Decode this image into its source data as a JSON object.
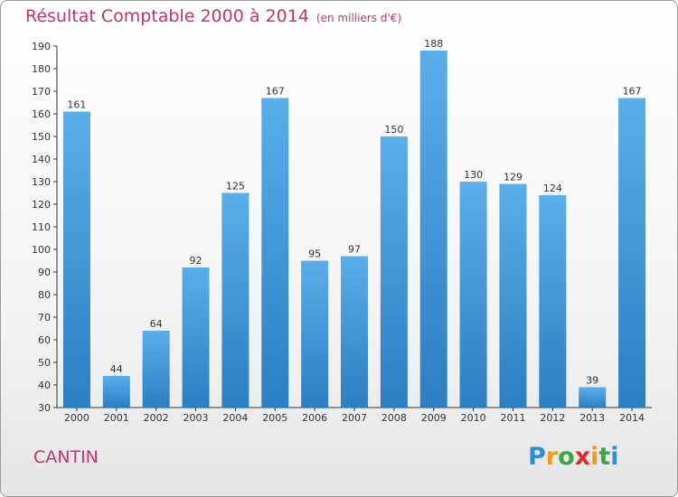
{
  "chart_data": {
    "type": "bar",
    "title": "Résultat Comptable 2000 à 2014",
    "subtitle": "(en milliers d'€)",
    "categories": [
      "2000",
      "2001",
      "2002",
      "2003",
      "2004",
      "2005",
      "2006",
      "2007",
      "2008",
      "2009",
      "2010",
      "2011",
      "2012",
      "2013",
      "2014"
    ],
    "values": [
      161,
      44,
      64,
      92,
      125,
      167,
      95,
      97,
      150,
      188,
      130,
      129,
      124,
      39,
      167
    ],
    "ylim": [
      30,
      190
    ],
    "yticks": [
      30,
      40,
      50,
      60,
      70,
      80,
      90,
      100,
      110,
      120,
      130,
      140,
      150,
      160,
      170,
      180,
      190
    ],
    "xlabel": "",
    "ylabel": "",
    "grid": false,
    "bar_color_top": "#5aaeea",
    "bar_color_bottom": "#2b7fc2"
  },
  "footer": {
    "city": "CANTIN",
    "logo_letters": [
      "P",
      "r",
      "o",
      "x",
      "i",
      "t",
      "i"
    ]
  },
  "colors": {
    "title": "#c8326e",
    "axis": "#333333"
  }
}
